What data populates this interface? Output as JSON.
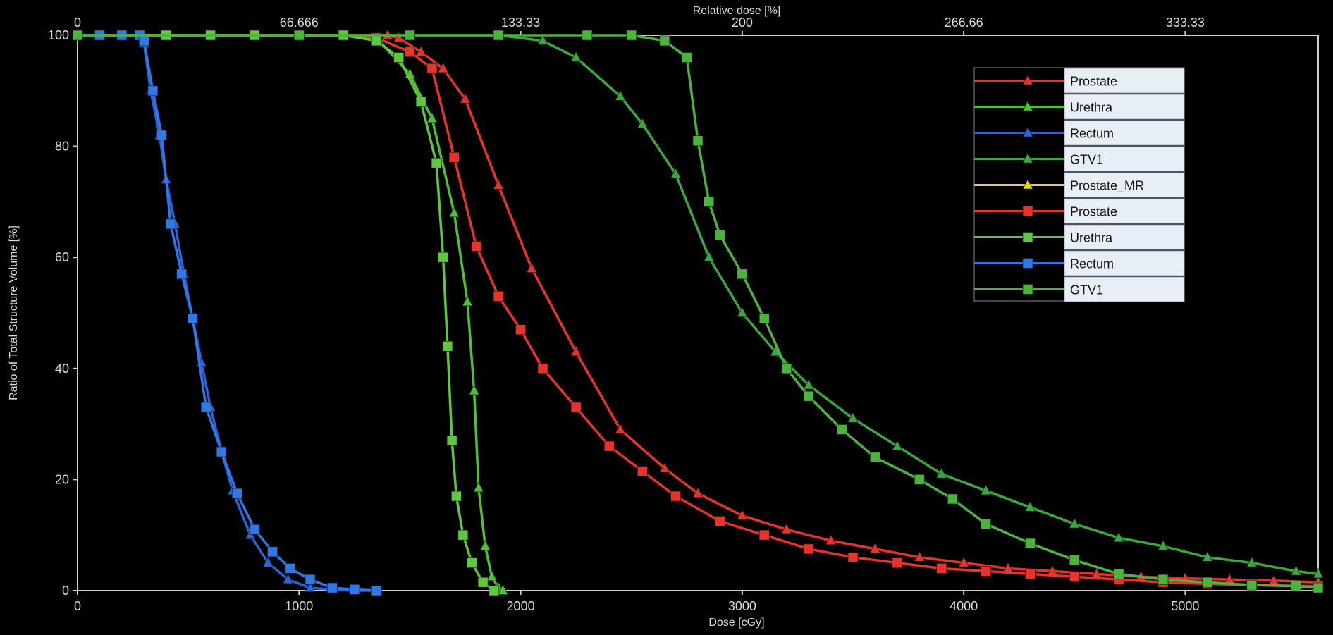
{
  "chart_data": {
    "type": "line",
    "xlabel": "Dose [cGy]",
    "ylabel": "Ratio of Total Structure Volume [%]",
    "top_axis_label": "Relative dose [%]",
    "xlim": [
      0,
      5600
    ],
    "ylim": [
      0,
      100
    ],
    "x_ticks": [
      "0",
      "1000",
      "2000",
      "3000",
      "4000",
      "5000"
    ],
    "y_ticks": [
      "0",
      "20",
      "40",
      "60",
      "80",
      "100"
    ],
    "top_ticks": [
      "0",
      "66.666",
      "133.33",
      "200",
      "266.66",
      "333.33"
    ],
    "top_tick_doses": [
      0,
      1000,
      2000,
      3000,
      4000,
      5000
    ],
    "legend_position": "top-right",
    "grid": false,
    "background": "#000000",
    "series": [
      {
        "name": "Prostate",
        "marker": "triangle",
        "color": "#e8322a",
        "x": [
          0,
          200,
          400,
          600,
          800,
          1000,
          1200,
          1400,
          1450,
          1550,
          1650,
          1750,
          1900,
          2050,
          2250,
          2450,
          2650,
          2800,
          3000,
          3200,
          3400,
          3600,
          3800,
          4000,
          4200,
          4400,
          4600,
          4800,
          5000,
          5200,
          5400,
          5600
        ],
        "y": [
          100,
          100,
          100,
          100,
          100,
          100,
          100,
          100,
          99.5,
          97,
          94,
          88.5,
          73,
          58,
          43,
          29,
          22,
          17.5,
          13.5,
          11,
          9,
          7.5,
          6,
          5,
          4,
          3.5,
          3,
          2.5,
          2.2,
          2,
          1.8,
          1.5
        ]
      },
      {
        "name": "Urethra",
        "marker": "triangle",
        "color": "#4fc234",
        "x": [
          0,
          200,
          400,
          600,
          800,
          1000,
          1200,
          1350,
          1500,
          1600,
          1700,
          1760,
          1790,
          1810,
          1840,
          1870,
          1900,
          1920
        ],
        "y": [
          100,
          100,
          100,
          100,
          100,
          100,
          100,
          99.5,
          93,
          85,
          68,
          52,
          36,
          18.5,
          8,
          2.5,
          0.5,
          0
        ]
      },
      {
        "name": "Rectum",
        "marker": "triangle",
        "color": "#2a64d8",
        "x": [
          0,
          100,
          200,
          280,
          300,
          330,
          370,
          400,
          440,
          480,
          520,
          560,
          600,
          650,
          700,
          780,
          860,
          950,
          1050,
          1150,
          1250,
          1350
        ],
        "y": [
          100,
          100,
          100,
          100,
          98.5,
          90,
          82,
          74,
          66,
          57,
          49,
          41,
          33,
          25,
          18,
          10,
          5,
          2,
          0.5,
          0.2,
          0,
          0
        ]
      },
      {
        "name": "GTV1",
        "marker": "triangle",
        "color": "#3aa83a",
        "x": [
          0,
          1000,
          1500,
          1900,
          2100,
          2250,
          2450,
          2550,
          2700,
          2850,
          3000,
          3150,
          3300,
          3500,
          3700,
          3900,
          4100,
          4300,
          4500,
          4700,
          4900,
          5100,
          5300,
          5500,
          5600
        ],
        "y": [
          100,
          100,
          100,
          100,
          99,
          96,
          89,
          84,
          75,
          60,
          50,
          43,
          37,
          31,
          26,
          21,
          18,
          15,
          12,
          9.5,
          8,
          6,
          5,
          3.5,
          3
        ]
      },
      {
        "name": "Prostate_MR",
        "marker": "triangle",
        "color": "#e8d51a",
        "x": [
          0,
          100
        ],
        "y": [
          100,
          100
        ]
      },
      {
        "name": "Prostate",
        "marker": "square",
        "color": "#e8322a",
        "x": [
          0,
          200,
          400,
          600,
          800,
          1000,
          1200,
          1350,
          1500,
          1600,
          1700,
          1800,
          1900,
          2000,
          2100,
          2250,
          2400,
          2550,
          2700,
          2900,
          3100,
          3300,
          3500,
          3700,
          3900,
          4100,
          4300,
          4500,
          4700,
          4900,
          5100,
          5300,
          5600
        ],
        "y": [
          100,
          100,
          100,
          100,
          100,
          100,
          100,
          99.5,
          97,
          94,
          78,
          62,
          53,
          47,
          40,
          33,
          26,
          21.5,
          17,
          12.5,
          10,
          7.5,
          6,
          5,
          4,
          3.5,
          3,
          2.5,
          2,
          1.5,
          1.2,
          1,
          0.8
        ]
      },
      {
        "name": "Urethra",
        "marker": "square",
        "color": "#5ec83f",
        "x": [
          0,
          200,
          400,
          600,
          800,
          1000,
          1200,
          1350,
          1450,
          1550,
          1620,
          1650,
          1670,
          1690,
          1710,
          1740,
          1780,
          1830,
          1880
        ],
        "y": [
          100,
          100,
          100,
          100,
          100,
          100,
          100,
          99,
          96,
          88,
          77,
          60,
          44,
          27,
          17,
          10,
          5,
          1.5,
          0
        ]
      },
      {
        "name": "Rectum",
        "marker": "square",
        "color": "#2f78e6",
        "x": [
          0,
          100,
          200,
          280,
          300,
          340,
          380,
          420,
          470,
          520,
          580,
          650,
          720,
          800,
          880,
          960,
          1050,
          1150,
          1250,
          1350
        ],
        "y": [
          100,
          100,
          100,
          100,
          99,
          90,
          82,
          66,
          57,
          49,
          33,
          25,
          17.5,
          11,
          7,
          4,
          2,
          0.5,
          0.2,
          0
        ]
      },
      {
        "name": "GTV1",
        "marker": "square",
        "color": "#4bb43a",
        "x": [
          0,
          1000,
          1500,
          1900,
          2300,
          2500,
          2650,
          2750,
          2800,
          2850,
          2900,
          3000,
          3100,
          3200,
          3300,
          3450,
          3600,
          3800,
          3950,
          4100,
          4300,
          4500,
          4700,
          4900,
          5100,
          5300,
          5500,
          5600
        ],
        "y": [
          100,
          100,
          100,
          100,
          100,
          100,
          99,
          96,
          81,
          70,
          64,
          57,
          49,
          40,
          35,
          29,
          24,
          20,
          16.5,
          12,
          8.5,
          5.5,
          3,
          2,
          1.5,
          1,
          0.8,
          0.5
        ]
      }
    ]
  }
}
